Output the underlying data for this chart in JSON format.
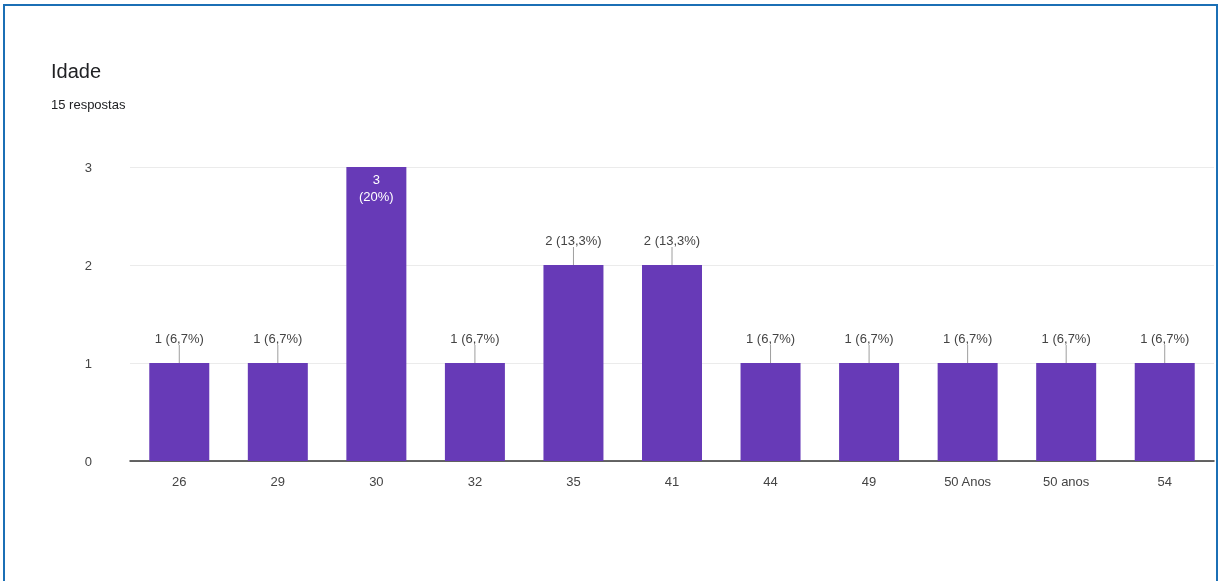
{
  "chart_data": {
    "type": "bar",
    "title": "Idade",
    "subtitle": "15 respostas",
    "categories": [
      "26",
      "29",
      "30",
      "32",
      "35",
      "41",
      "44",
      "49",
      "50 Anos",
      "50 anos",
      "54"
    ],
    "values": [
      1,
      1,
      3,
      1,
      2,
      2,
      1,
      1,
      1,
      1,
      1
    ],
    "value_labels": [
      "1 (6,7%)",
      "1 (6,7%)",
      "3 (20%)",
      "1 (6,7%)",
      "2 (13,3%)",
      "2 (13,3%)",
      "1 (6,7%)",
      "1 (6,7%)",
      "1 (6,7%)",
      "1 (6,7%)",
      "1 (6,7%)"
    ],
    "color": "#673ab7",
    "ylim": [
      0,
      3
    ],
    "yticks": [
      0,
      1,
      2,
      3
    ],
    "grid": "y"
  }
}
